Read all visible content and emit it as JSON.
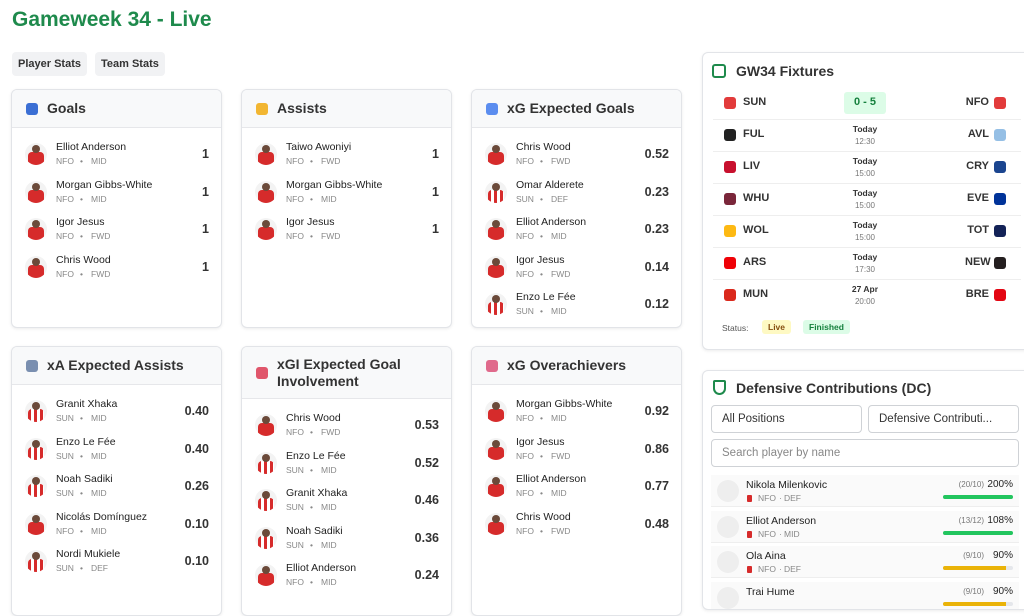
{
  "header": {
    "title": "Gameweek 34 - Live"
  },
  "tabs": [
    "Player Stats",
    "Team Stats"
  ],
  "cards": [
    {
      "title": "Goals",
      "rows": [
        {
          "name": "Elliot Anderson",
          "team": "NFO",
          "pos": "MID",
          "value": "1"
        },
        {
          "name": "Morgan Gibbs-White",
          "team": "NFO",
          "pos": "MID",
          "value": "1"
        },
        {
          "name": "Igor Jesus",
          "team": "NFO",
          "pos": "FWD",
          "value": "1"
        },
        {
          "name": "Chris Wood",
          "team": "NFO",
          "pos": "FWD",
          "value": "1"
        }
      ]
    },
    {
      "title": "Assists",
      "rows": [
        {
          "name": "Taiwo Awoniyi",
          "team": "NFO",
          "pos": "FWD",
          "value": "1"
        },
        {
          "name": "Morgan Gibbs-White",
          "team": "NFO",
          "pos": "MID",
          "value": "1"
        },
        {
          "name": "Igor Jesus",
          "team": "NFO",
          "pos": "FWD",
          "value": "1"
        }
      ]
    },
    {
      "title": "xG Expected Goals",
      "rows": [
        {
          "name": "Chris Wood",
          "team": "NFO",
          "pos": "FWD",
          "value": "0.52"
        },
        {
          "name": "Omar Alderete",
          "team": "SUN",
          "pos": "DEF",
          "value": "0.23"
        },
        {
          "name": "Elliot Anderson",
          "team": "NFO",
          "pos": "MID",
          "value": "0.23"
        },
        {
          "name": "Igor Jesus",
          "team": "NFO",
          "pos": "FWD",
          "value": "0.14"
        },
        {
          "name": "Enzo Le Fée",
          "team": "SUN",
          "pos": "MID",
          "value": "0.12"
        }
      ]
    },
    {
      "title": "xA Expected Assists",
      "rows": [
        {
          "name": "Granit Xhaka",
          "team": "SUN",
          "pos": "MID",
          "value": "0.40"
        },
        {
          "name": "Enzo Le Fée",
          "team": "SUN",
          "pos": "MID",
          "value": "0.40"
        },
        {
          "name": "Noah Sadiki",
          "team": "SUN",
          "pos": "MID",
          "value": "0.26"
        },
        {
          "name": "Nicolás Domínguez",
          "team": "NFO",
          "pos": "MID",
          "value": "0.10"
        },
        {
          "name": "Nordi Mukiele",
          "team": "SUN",
          "pos": "DEF",
          "value": "0.10"
        }
      ]
    },
    {
      "title": "xGI Expected Goal Involvement",
      "rows": [
        {
          "name": "Chris Wood",
          "team": "NFO",
          "pos": "FWD",
          "value": "0.53"
        },
        {
          "name": "Enzo Le Fée",
          "team": "SUN",
          "pos": "MID",
          "value": "0.52"
        },
        {
          "name": "Granit Xhaka",
          "team": "SUN",
          "pos": "MID",
          "value": "0.46"
        },
        {
          "name": "Noah Sadiki",
          "team": "SUN",
          "pos": "MID",
          "value": "0.36"
        },
        {
          "name": "Elliot Anderson",
          "team": "NFO",
          "pos": "MID",
          "value": "0.24"
        }
      ]
    },
    {
      "title": "xG Overachievers",
      "rows": [
        {
          "name": "Morgan Gibbs-White",
          "team": "NFO",
          "pos": "MID",
          "value": "0.92"
        },
        {
          "name": "Igor Jesus",
          "team": "NFO",
          "pos": "FWD",
          "value": "0.86"
        },
        {
          "name": "Elliot Anderson",
          "team": "NFO",
          "pos": "MID",
          "value": "0.77"
        },
        {
          "name": "Chris Wood",
          "team": "NFO",
          "pos": "FWD",
          "value": "0.48"
        }
      ]
    }
  ],
  "fixtures": {
    "title": "GW34 Fixtures",
    "rows": [
      {
        "home": "SUN",
        "score": "0 - 5",
        "away": "NFO"
      },
      {
        "home": "FUL",
        "day": "Today",
        "time": "12:30",
        "away": "AVL"
      },
      {
        "home": "LIV",
        "day": "Today",
        "time": "15:00",
        "away": "CRY"
      },
      {
        "home": "WHU",
        "day": "Today",
        "time": "15:00",
        "away": "EVE"
      },
      {
        "home": "WOL",
        "day": "Today",
        "time": "15:00",
        "away": "TOT"
      },
      {
        "home": "ARS",
        "day": "Today",
        "time": "17:30",
        "away": "NEW"
      },
      {
        "home": "MUN",
        "day": "27 Apr",
        "time": "20:00",
        "away": "BRE"
      }
    ],
    "status_label": "Status:",
    "legend": [
      "Live",
      "Finished"
    ]
  },
  "dc": {
    "title": "Defensive Contributions (DC)",
    "filters": [
      "All Positions",
      "Defensive Contributi..."
    ],
    "search": "Search player by name",
    "rows": [
      {
        "name": "Nikola Milenkovic",
        "team": "NFO",
        "pos": "DEF",
        "ratio": "(20/10)",
        "pct": {
          "value": 200,
          "label": "200%"
        },
        "color": "#22c55e"
      },
      {
        "name": "Elliot Anderson",
        "team": "NFO",
        "pos": "MID",
        "ratio": "(13/12)",
        "pct": {
          "value": 108,
          "label": "108%"
        },
        "color": "#22c55e"
      },
      {
        "name": "Ola Aina",
        "team": "NFO",
        "pos": "DEF",
        "ratio": "(9/10)",
        "pct": {
          "value": 90,
          "label": "90%"
        },
        "color": "#eab308"
      },
      {
        "name": "Trai Hume",
        "ratio": "(9/10)",
        "pct": {
          "value": 90,
          "label": "90%"
        },
        "color": "#eab308"
      }
    ]
  }
}
